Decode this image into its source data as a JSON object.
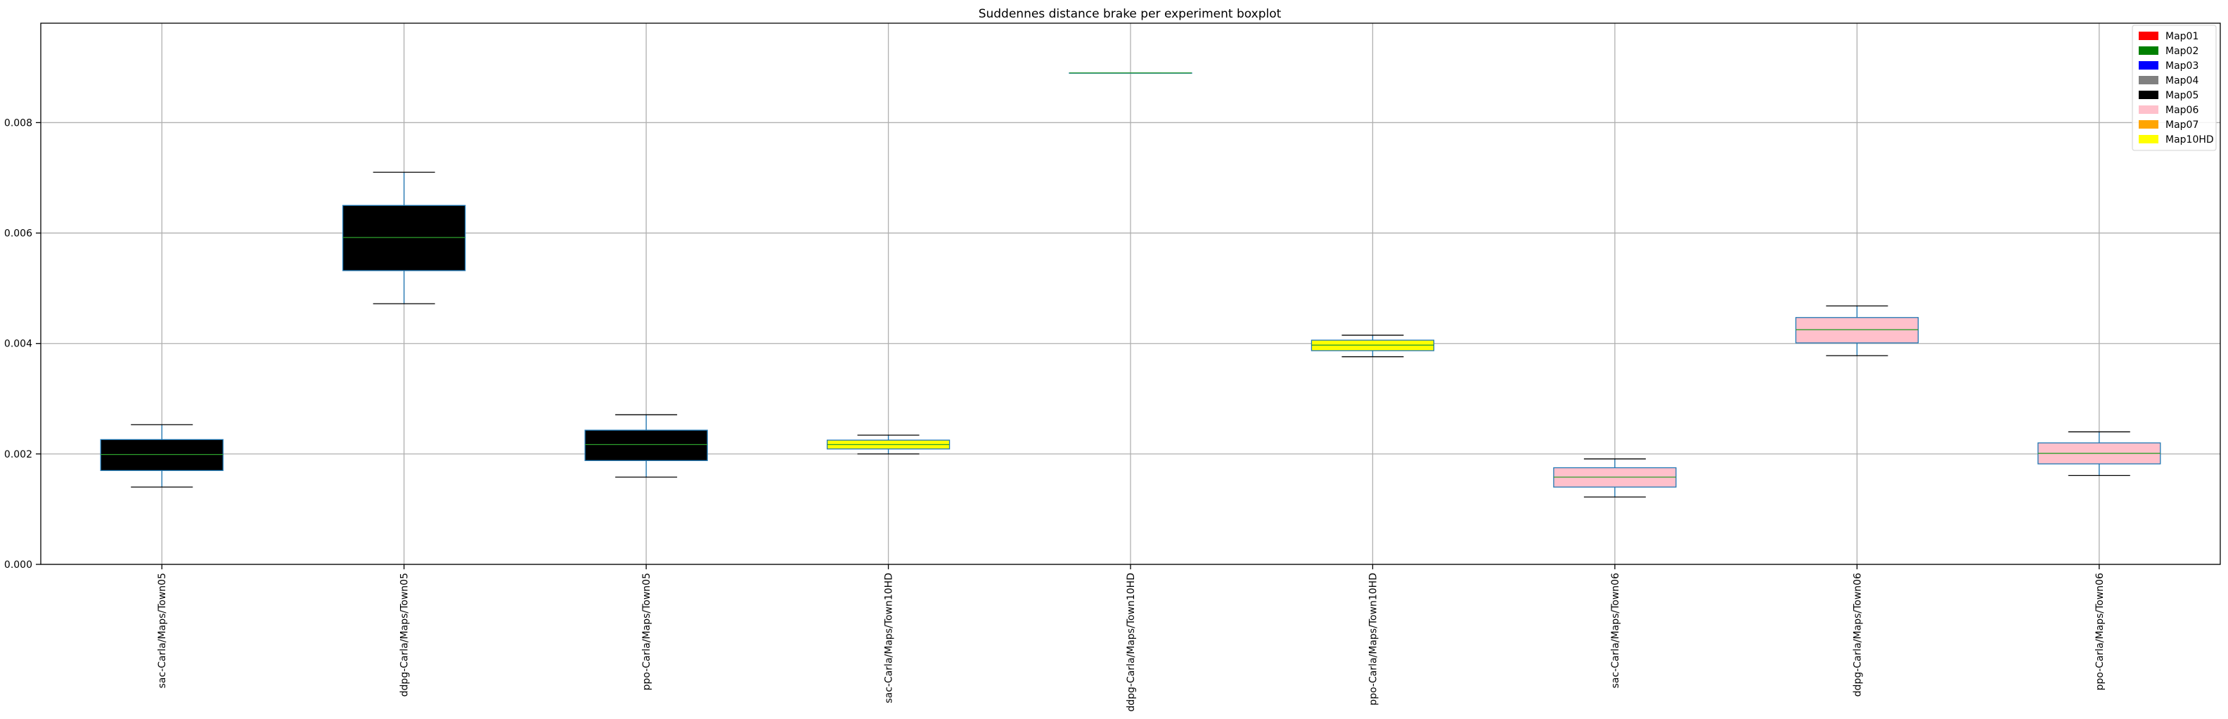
{
  "chart_data": {
    "type": "boxplot",
    "title": "Suddennes distance brake per experiment boxplot",
    "xlabel": "",
    "ylabel": "",
    "ylim": [
      0,
      0.0098
    ],
    "yticks": [
      "0.000",
      "0.002",
      "0.004",
      "0.006",
      "0.008"
    ],
    "grid": true,
    "legend_position": "top-right",
    "legend": [
      {
        "label": "Map01",
        "color": "#ff0000"
      },
      {
        "label": "Map02",
        "color": "#008000"
      },
      {
        "label": "Map03",
        "color": "#0000ff"
      },
      {
        "label": "Map04",
        "color": "#808080"
      },
      {
        "label": "Map05",
        "color": "#000000"
      },
      {
        "label": "Map06",
        "color": "#ffc0cb"
      },
      {
        "label": "Map07",
        "color": "#ffa500"
      },
      {
        "label": "Map10HD",
        "color": "#ffff00"
      }
    ],
    "categories": [
      "sac-Carla/Maps/Town05",
      "ddpg-Carla/Maps/Town05",
      "ppo-Carla/Maps/Town05",
      "sac-Carla/Maps/Town10HD",
      "ddpg-Carla/Maps/Town10HD",
      "ppo-Carla/Maps/Town10HD",
      "sac-Carla/Maps/Town06",
      "ddpg-Carla/Maps/Town06",
      "ppo-Carla/Maps/Town06"
    ],
    "boxes": [
      {
        "whislo": 0.0014,
        "q1": 0.0017,
        "med": 0.00199,
        "q3": 0.00226,
        "whishi": 0.00253,
        "color": "#000000"
      },
      {
        "whislo": 0.00472,
        "q1": 0.00532,
        "med": 0.00592,
        "q3": 0.0065,
        "whishi": 0.0071,
        "color": "#000000"
      },
      {
        "whislo": 0.00158,
        "q1": 0.00188,
        "med": 0.00217,
        "q3": 0.00243,
        "whishi": 0.00271,
        "color": "#000000"
      },
      {
        "whislo": 0.002,
        "q1": 0.00209,
        "med": 0.00217,
        "q3": 0.00225,
        "whishi": 0.00234,
        "color": "#ffff00"
      },
      {
        "whislo": 0.0089,
        "q1": 0.0089,
        "med": 0.0089,
        "q3": 0.0089,
        "whishi": 0.0089,
        "color": "#ffff00"
      },
      {
        "whislo": 0.00376,
        "q1": 0.00387,
        "med": 0.00397,
        "q3": 0.00406,
        "whishi": 0.00415,
        "color": "#ffff00"
      },
      {
        "whislo": 0.00122,
        "q1": 0.0014,
        "med": 0.00158,
        "q3": 0.00175,
        "whishi": 0.00191,
        "color": "#ffc0cb"
      },
      {
        "whislo": 0.00378,
        "q1": 0.00401,
        "med": 0.00425,
        "q3": 0.00447,
        "whishi": 0.00468,
        "color": "#ffc0cb"
      },
      {
        "whislo": 0.00161,
        "q1": 0.00182,
        "med": 0.00201,
        "q3": 0.0022,
        "whishi": 0.0024,
        "color": "#ffc0cb"
      }
    ]
  }
}
